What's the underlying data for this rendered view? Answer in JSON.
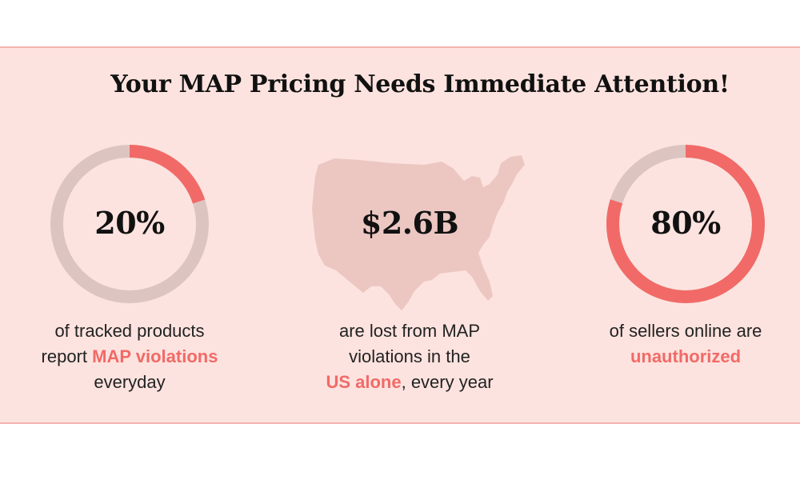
{
  "title": "Your MAP Pricing Needs Immediate Attention!",
  "stats": [
    {
      "value": "20%",
      "fraction": 0.2,
      "caption_line1": "of tracked products",
      "caption_line2_pre": "report ",
      "caption_line2_highlight": "MAP violations",
      "caption_line3": "everyday"
    },
    {
      "value": "$2.6B",
      "caption_line1": "are lost from MAP",
      "caption_line2": "violations in the",
      "caption_line3_highlight": "US alone",
      "caption_line3_post": ", every year",
      "icon": "us-map-icon"
    },
    {
      "value": "80%",
      "fraction": 0.8,
      "caption_line1": "of sellers online are",
      "caption_line2_highlight": "unauthorized"
    }
  ],
  "colors": {
    "background": "#fde3df",
    "border": "#f3b3ae",
    "ring_track": "#dcc5c1",
    "ring_fill": "#f16a67",
    "highlight": "#f16a67",
    "map": "#ecc7c2"
  }
}
